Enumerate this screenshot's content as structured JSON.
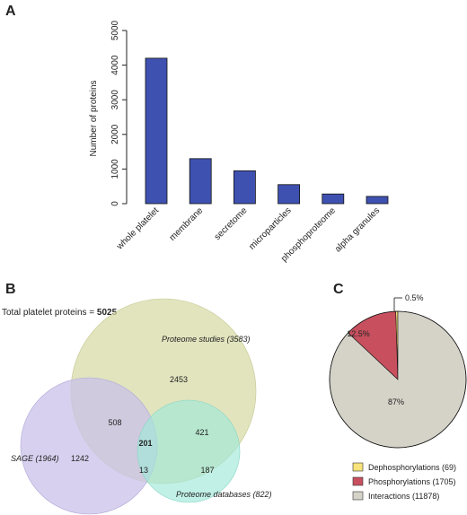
{
  "chart_data": [
    {
      "panel": "A",
      "type": "bar",
      "ylabel": "Number of proteins",
      "ylim": [
        0,
        5000
      ],
      "yticks": [
        "0",
        "1000",
        "2000",
        "3000",
        "4000",
        "5000"
      ],
      "categories": [
        "whole platelet",
        "membrane",
        "secretome",
        "microparticles",
        "phosphoproteome",
        "alpha granules"
      ],
      "values": [
        4200,
        1300,
        950,
        550,
        280,
        210
      ],
      "colors": {
        "bar": "#3f51b0",
        "edge": "#111111"
      }
    },
    {
      "panel": "B",
      "type": "venn",
      "header": "Total platelet proteins = ",
      "total": "5025",
      "sets": [
        {
          "label": "Proteome studies (3583)",
          "color": "#d8dba8"
        },
        {
          "label": "SAGE (1964)",
          "color": "#c9c2e9"
        },
        {
          "label": "Proteome databases (822)",
          "color": "#9fe8d8"
        }
      ],
      "regions": {
        "proteome_only": "2453",
        "proteome_sage": "508",
        "proteome_db": "421",
        "all_three": "201",
        "sage_only": "1242",
        "sage_db": "13",
        "db_only": "187"
      }
    },
    {
      "panel": "C",
      "type": "pie",
      "slices": [
        {
          "name": "Dephosphorylations (69)",
          "value": 0.5,
          "label": "0.5%",
          "color": "#f7e37a"
        },
        {
          "name": "Phosphorylations (1705)",
          "value": 12.5,
          "label": "12.5%",
          "color": "#c8505e"
        },
        {
          "name": "Interactions (11878)",
          "value": 87,
          "label": "87%",
          "color": "#d5d3c8"
        }
      ]
    }
  ]
}
